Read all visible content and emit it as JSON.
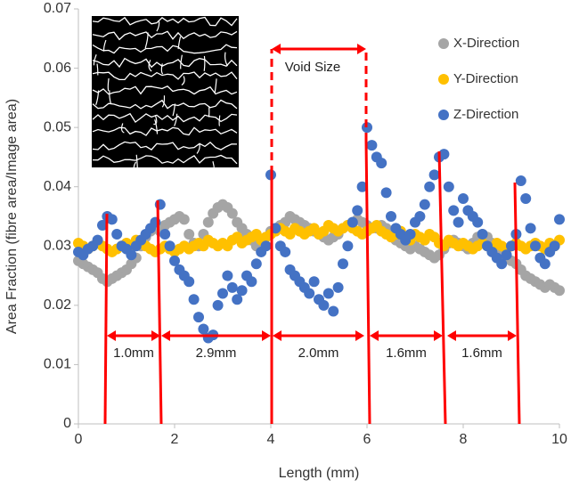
{
  "chart_data": {
    "type": "scatter",
    "x_label": "Length (mm)",
    "y_label": "Area Fraction (fibre area/Image area)",
    "x": [
      0,
      0.1,
      0.2,
      0.3,
      0.4,
      0.5,
      0.6,
      0.7,
      0.8,
      0.9,
      1,
      1.1,
      1.2,
      1.3,
      1.4,
      1.5,
      1.6,
      1.7,
      1.8,
      1.9,
      2,
      2.1,
      2.2,
      2.3,
      2.4,
      2.5,
      2.6,
      2.7,
      2.8,
      2.9,
      3,
      3.1,
      3.2,
      3.3,
      3.4,
      3.5,
      3.6,
      3.7,
      3.8,
      3.9,
      4,
      4.1,
      4.2,
      4.3,
      4.4,
      4.5,
      4.6,
      4.7,
      4.8,
      4.9,
      5,
      5.1,
      5.2,
      5.3,
      5.4,
      5.5,
      5.6,
      5.7,
      5.8,
      5.9,
      6,
      6.1,
      6.2,
      6.3,
      6.4,
      6.5,
      6.6,
      6.7,
      6.8,
      6.9,
      7,
      7.1,
      7.2,
      7.3,
      7.4,
      7.5,
      7.6,
      7.7,
      7.8,
      7.9,
      8,
      8.1,
      8.2,
      8.3,
      8.4,
      8.5,
      8.6,
      8.7,
      8.8,
      8.9,
      9,
      9.1,
      9.2,
      9.3,
      9.4,
      9.5,
      9.6,
      9.7,
      9.8,
      9.9,
      10
    ],
    "series": [
      {
        "name": "X-Direction",
        "color": "#a5a5a5",
        "values": [
          0.0275,
          0.027,
          0.0265,
          0.026,
          0.0255,
          0.0245,
          0.024,
          0.0245,
          0.025,
          0.0255,
          0.026,
          0.027,
          0.028,
          0.03,
          0.0315,
          0.0325,
          0.033,
          0.0325,
          0.0335,
          0.034,
          0.0345,
          0.035,
          0.0345,
          0.032,
          0.0305,
          0.03,
          0.032,
          0.034,
          0.0355,
          0.0365,
          0.037,
          0.0365,
          0.0355,
          0.034,
          0.033,
          0.032,
          0.031,
          0.03,
          0.0305,
          0.0315,
          0.0325,
          0.033,
          0.0335,
          0.034,
          0.035,
          0.0345,
          0.034,
          0.0335,
          0.033,
          0.0325,
          0.032,
          0.0315,
          0.031,
          0.0315,
          0.032,
          0.033,
          0.0335,
          0.034,
          0.0345,
          0.034,
          0.0335,
          0.033,
          0.033,
          0.0335,
          0.033,
          0.032,
          0.031,
          0.0305,
          0.03,
          0.0295,
          0.03,
          0.0295,
          0.029,
          0.0285,
          0.028,
          0.0285,
          0.0295,
          0.0305,
          0.031,
          0.0305,
          0.03,
          0.0295,
          0.0305,
          0.0315,
          0.032,
          0.0315,
          0.0305,
          0.0295,
          0.0285,
          0.028,
          0.0275,
          0.027,
          0.026,
          0.025,
          0.0245,
          0.024,
          0.0235,
          0.023,
          0.0235,
          0.023,
          0.0225
        ]
      },
      {
        "name": "Y-Direction",
        "color": "#ffc000",
        "values": [
          0.0305,
          0.03,
          0.0295,
          0.03,
          0.0305,
          0.03,
          0.0295,
          0.029,
          0.0295,
          0.03,
          0.0305,
          0.03,
          0.031,
          0.0305,
          0.03,
          0.0295,
          0.029,
          0.0295,
          0.03,
          0.0295,
          0.029,
          0.0295,
          0.03,
          0.0295,
          0.03,
          0.0305,
          0.03,
          0.031,
          0.0305,
          0.03,
          0.0305,
          0.03,
          0.031,
          0.0315,
          0.0305,
          0.031,
          0.0315,
          0.032,
          0.031,
          0.0315,
          0.032,
          0.0325,
          0.033,
          0.0325,
          0.032,
          0.033,
          0.0325,
          0.032,
          0.0325,
          0.033,
          0.032,
          0.0325,
          0.0335,
          0.033,
          0.0325,
          0.033,
          0.0335,
          0.033,
          0.0325,
          0.032,
          0.0325,
          0.033,
          0.0335,
          0.0325,
          0.032,
          0.0315,
          0.032,
          0.0325,
          0.0315,
          0.031,
          0.032,
          0.0315,
          0.031,
          0.032,
          0.0315,
          0.0305,
          0.03,
          0.031,
          0.0305,
          0.03,
          0.0305,
          0.03,
          0.0295,
          0.03,
          0.0305,
          0.03,
          0.0295,
          0.0305,
          0.03,
          0.0295,
          0.03,
          0.0305,
          0.03,
          0.0295,
          0.03,
          0.0305,
          0.03,
          0.0295,
          0.0305,
          0.03,
          0.031
        ]
      },
      {
        "name": "Z-Direction",
        "color": "#4472c4",
        "values": [
          0.029,
          0.0285,
          0.0295,
          0.03,
          0.031,
          0.0335,
          0.035,
          0.0345,
          0.032,
          0.03,
          0.0295,
          0.0285,
          0.03,
          0.031,
          0.032,
          0.033,
          0.034,
          0.037,
          0.032,
          0.03,
          0.0275,
          0.026,
          0.025,
          0.024,
          0.021,
          0.018,
          0.016,
          0.0145,
          0.015,
          0.02,
          0.022,
          0.025,
          0.023,
          0.021,
          0.0225,
          0.025,
          0.024,
          0.027,
          0.029,
          0.03,
          0.042,
          0.033,
          0.03,
          0.029,
          0.026,
          0.025,
          0.024,
          0.023,
          0.022,
          0.024,
          0.021,
          0.02,
          0.022,
          0.019,
          0.023,
          0.027,
          0.03,
          0.034,
          0.036,
          0.04,
          0.05,
          0.047,
          0.045,
          0.044,
          0.039,
          0.035,
          0.033,
          0.032,
          0.031,
          0.032,
          0.034,
          0.035,
          0.037,
          0.04,
          0.042,
          0.045,
          0.0455,
          0.04,
          0.036,
          0.034,
          0.038,
          0.036,
          0.035,
          0.034,
          0.032,
          0.03,
          0.029,
          0.028,
          0.027,
          0.0285,
          0.03,
          0.032,
          0.041,
          0.038,
          0.033,
          0.03,
          0.028,
          0.027,
          0.029,
          0.03,
          0.0345
        ]
      }
    ],
    "xlim": [
      0,
      10
    ],
    "xticks": [
      0,
      2,
      4,
      6,
      8,
      10
    ],
    "ylim": [
      0,
      0.07
    ],
    "yticks": [
      0,
      0.01,
      0.02,
      0.03,
      0.04,
      0.05,
      0.06,
      0.07
    ],
    "legend": "top-right",
    "annotations": [
      "Void Size",
      "1.0mm",
      "2.9mm",
      "2.0mm",
      "1.6mm",
      "1.6mm"
    ]
  }
}
